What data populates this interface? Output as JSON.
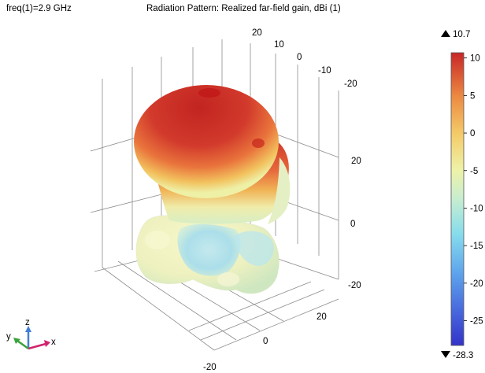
{
  "header": {
    "freq_label": "freq(1)=2.9 GHz",
    "title": "Radiation Pattern: Realized far-field gain, dBi (1)"
  },
  "chart_data": {
    "type": "surface3d",
    "title": "Radiation Pattern: Realized far-field gain, dBi (1)",
    "parameter": "freq(1)=2.9 GHz",
    "quantity": "Realized far-field gain",
    "unit": "dBi",
    "color_range": [
      -28.3,
      10.7
    ],
    "colorbar": {
      "max_label": "10.7",
      "min_label": "-28.3",
      "ticks": [
        10,
        5,
        0,
        -5,
        -10,
        -15,
        -20,
        -25
      ],
      "tick_labels": [
        "10",
        "5",
        "0",
        "-5",
        "-10",
        "-15",
        "-20",
        "-25"
      ],
      "colormap": [
        "#3b3bd0",
        "#4f8fe8",
        "#7fd6ee",
        "#c9eccd",
        "#f0f0a8",
        "#f2c060",
        "#ea7a3c",
        "#c8282a"
      ]
    },
    "axes": {
      "x": {
        "ticks": [
          -20,
          0,
          20
        ],
        "tick_labels": [
          "-20",
          "0",
          "20"
        ]
      },
      "y": {
        "ticks": [
          -20,
          -10,
          0,
          10,
          20
        ],
        "tick_labels": [
          "-20",
          "-10",
          "0",
          "10",
          "20"
        ]
      },
      "z": {
        "ticks": [
          -20,
          0,
          20
        ],
        "tick_labels": [
          "-20",
          "0",
          "20"
        ]
      }
    },
    "orientation_triad": {
      "x": "x",
      "y": "y",
      "z": "z"
    },
    "grid": true
  }
}
